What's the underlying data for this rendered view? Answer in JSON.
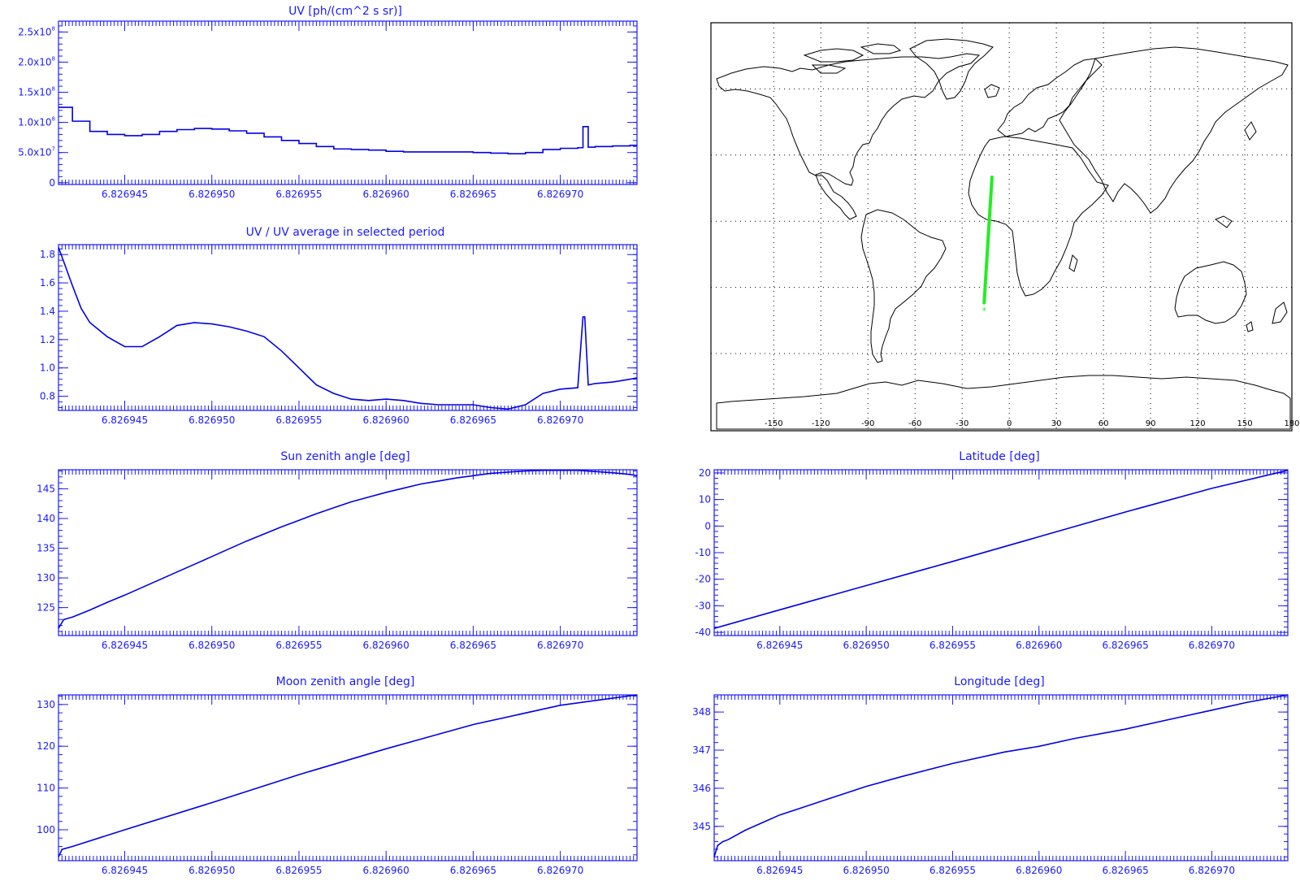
{
  "chart_data": [
    {
      "type": "line",
      "title": "UV [ph/(cm^2 s sr)]",
      "xlabel": "",
      "ylabel": "",
      "x_ticks": [
        "6.826945",
        "6.826950",
        "6.826955",
        "6.826960",
        "6.826965",
        "6.826970"
      ],
      "y_ticks": [
        {
          "value": 0,
          "label": "0"
        },
        {
          "value": 50000000,
          "label": "5.0x10",
          "exp": "7"
        },
        {
          "value": 100000000,
          "label": "1.0x10",
          "exp": "8"
        },
        {
          "value": 150000000,
          "label": "1.5x10",
          "exp": "8"
        },
        {
          "value": 200000000,
          "label": "2.0x10",
          "exp": "8"
        },
        {
          "value": 250000000,
          "label": "2.5x10",
          "exp": "8"
        }
      ],
      "xlim": [
        6.8269412,
        6.8269744
      ],
      "ylim": [
        -3000000,
        268000000
      ],
      "line_style": "histogram",
      "series": [
        {
          "x": [
            6.8269412,
            6.826942,
            6.826943,
            6.826944,
            6.826945,
            6.826946,
            6.826947,
            6.826948,
            6.826949,
            6.82695,
            6.826951,
            6.826952,
            6.826953,
            6.826954,
            6.826955,
            6.826956,
            6.826957,
            6.826958,
            6.826959,
            6.82696,
            6.826961,
            6.826962,
            6.826963,
            6.826964,
            6.826965,
            6.826966,
            6.826967,
            6.826968,
            6.826969,
            6.82697,
            6.826971,
            6.8269713,
            6.8269714,
            6.8269716,
            6.826972,
            6.826973,
            6.826974,
            6.8269744
          ],
          "y": [
            125000000,
            102000000,
            85000000,
            80000000,
            78000000,
            80000000,
            85000000,
            88000000,
            90000000,
            89000000,
            86000000,
            82000000,
            76000000,
            70000000,
            65000000,
            60000000,
            56000000,
            55000000,
            54000000,
            52000000,
            51000000,
            51000000,
            51000000,
            51000000,
            50000000,
            49000000,
            48000000,
            50000000,
            55000000,
            57000000,
            58000000,
            93000000,
            93000000,
            59000000,
            60000000,
            61000000,
            62000000,
            62000000
          ]
        }
      ]
    },
    {
      "type": "line",
      "title": "UV / UV average in selected period",
      "xlabel": "",
      "ylabel": "",
      "x_ticks": [
        "6.826945",
        "6.826950",
        "6.826955",
        "6.826960",
        "6.826965",
        "6.826970"
      ],
      "y_ticks": [
        {
          "value": 0.8,
          "label": "0.8"
        },
        {
          "value": 1.0,
          "label": "1.0"
        },
        {
          "value": 1.2,
          "label": "1.2"
        },
        {
          "value": 1.4,
          "label": "1.4"
        },
        {
          "value": 1.6,
          "label": "1.6"
        },
        {
          "value": 1.8,
          "label": "1.8"
        }
      ],
      "xlim": [
        6.8269412,
        6.8269744
      ],
      "ylim": [
        0.7,
        1.87
      ],
      "series": [
        {
          "x": [
            6.8269412,
            6.8269415,
            6.826942,
            6.8269425,
            6.826943,
            6.826944,
            6.826945,
            6.826946,
            6.826947,
            6.826948,
            6.826949,
            6.82695,
            6.826951,
            6.826952,
            6.826953,
            6.826954,
            6.826955,
            6.826956,
            6.826957,
            6.826958,
            6.826959,
            6.82696,
            6.826961,
            6.826962,
            6.826963,
            6.826964,
            6.826965,
            6.826966,
            6.826967,
            6.826968,
            6.826969,
            6.82697,
            6.826971,
            6.8269713,
            6.8269714,
            6.8269716,
            6.826972,
            6.826973,
            6.826974,
            6.8269744
          ],
          "y": [
            1.85,
            1.75,
            1.58,
            1.42,
            1.32,
            1.22,
            1.15,
            1.15,
            1.22,
            1.3,
            1.32,
            1.31,
            1.29,
            1.26,
            1.22,
            1.12,
            1.0,
            0.88,
            0.82,
            0.78,
            0.77,
            0.78,
            0.77,
            0.75,
            0.74,
            0.74,
            0.74,
            0.72,
            0.71,
            0.74,
            0.82,
            0.85,
            0.86,
            1.36,
            1.36,
            0.88,
            0.89,
            0.9,
            0.92,
            0.93
          ]
        }
      ]
    },
    {
      "type": "line",
      "title": "Sun zenith angle [deg]",
      "xlabel": "",
      "ylabel": "",
      "x_ticks": [
        "6.826945",
        "6.826950",
        "6.826955",
        "6.826960",
        "6.826965",
        "6.826970"
      ],
      "y_ticks": [
        {
          "value": 125,
          "label": "125"
        },
        {
          "value": 130,
          "label": "130"
        },
        {
          "value": 135,
          "label": "135"
        },
        {
          "value": 140,
          "label": "140"
        },
        {
          "value": 145,
          "label": "145"
        }
      ],
      "xlim": [
        6.8269412,
        6.8269744
      ],
      "ylim": [
        120.3,
        148.2
      ],
      "series": [
        {
          "x": [
            6.8269412,
            6.8269415,
            6.826942,
            6.826943,
            6.826944,
            6.826945,
            6.826946,
            6.826947,
            6.826948,
            6.826949,
            6.82695,
            6.826951,
            6.826952,
            6.826953,
            6.826954,
            6.826955,
            6.826956,
            6.826957,
            6.826958,
            6.826959,
            6.82696,
            6.826961,
            6.826962,
            6.826963,
            6.826964,
            6.826965,
            6.826966,
            6.826967,
            6.826968,
            6.826969,
            6.82697,
            6.826971,
            6.826972,
            6.826973,
            6.826974,
            6.8269744
          ],
          "y": [
            121.5,
            123.0,
            123.4,
            124.6,
            125.9,
            127.1,
            128.4,
            129.7,
            131.0,
            132.3,
            133.6,
            134.9,
            136.2,
            137.4,
            138.6,
            139.7,
            140.8,
            141.8,
            142.8,
            143.6,
            144.4,
            145.1,
            145.8,
            146.3,
            146.8,
            147.2,
            147.6,
            147.8,
            148.0,
            148.1,
            148.1,
            148.1,
            147.9,
            147.7,
            147.4,
            147.2
          ]
        }
      ]
    },
    {
      "type": "line",
      "title": "Latitude [deg]",
      "xlabel": "",
      "ylabel": "",
      "x_ticks": [
        "6.826945",
        "6.826950",
        "6.826955",
        "6.826960",
        "6.826965",
        "6.826970"
      ],
      "y_ticks": [
        {
          "value": -40,
          "label": "-40"
        },
        {
          "value": -30,
          "label": "-30"
        },
        {
          "value": -20,
          "label": "-20"
        },
        {
          "value": -10,
          "label": "-10"
        },
        {
          "value": 0,
          "label": "0"
        },
        {
          "value": 10,
          "label": "10"
        },
        {
          "value": 20,
          "label": "20"
        }
      ],
      "xlim": [
        6.8269412,
        6.8269744
      ],
      "ylim": [
        -41.2,
        21.2
      ],
      "series": [
        {
          "x": [
            6.8269412,
            6.826945,
            6.82695,
            6.826955,
            6.82696,
            6.826965,
            6.82697,
            6.8269744
          ],
          "y": [
            -38.5,
            -31.5,
            -22.4,
            -13.3,
            -4.0,
            5.3,
            14.2,
            21.0
          ]
        }
      ]
    },
    {
      "type": "line",
      "title": "Moon zenith angle [deg]",
      "xlabel": "",
      "ylabel": "",
      "x_ticks": [
        "6.826945",
        "6.826950",
        "6.826955",
        "6.826960",
        "6.826965",
        "6.826970"
      ],
      "y_ticks": [
        {
          "value": 100,
          "label": "100"
        },
        {
          "value": 110,
          "label": "110"
        },
        {
          "value": 120,
          "label": "120"
        },
        {
          "value": 130,
          "label": "130"
        }
      ],
      "xlim": [
        6.8269412,
        6.8269744
      ],
      "ylim": [
        92.6,
        132.3
      ],
      "series": [
        {
          "x": [
            6.8269412,
            6.8269414,
            6.826942,
            6.826945,
            6.82695,
            6.826955,
            6.82696,
            6.826965,
            6.82697,
            6.8269744
          ],
          "y": [
            93.5,
            95.3,
            96.0,
            100.0,
            106.5,
            113.2,
            119.4,
            125.2,
            129.8,
            132.3
          ]
        }
      ]
    },
    {
      "type": "line",
      "title": "Longitude [deg]",
      "xlabel": "",
      "ylabel": "",
      "x_ticks": [
        "6.826945",
        "6.826950",
        "6.826955",
        "6.826960",
        "6.826965",
        "6.826970"
      ],
      "y_ticks": [
        {
          "value": 345,
          "label": "345"
        },
        {
          "value": 346,
          "label": "346"
        },
        {
          "value": 347,
          "label": "347"
        },
        {
          "value": 348,
          "label": "348"
        }
      ],
      "xlim": [
        6.8269412,
        6.8269744
      ],
      "ylim": [
        344.1,
        348.45
      ],
      "series": [
        {
          "x": [
            6.8269412,
            6.8269414,
            6.8269417,
            6.826942,
            6.826943,
            6.826944,
            6.826945,
            6.826946,
            6.826948,
            6.82695,
            6.826952,
            6.826955,
            6.826958,
            6.82696,
            6.826962,
            6.826965,
            6.826968,
            6.82697,
            6.826972,
            6.8269744
          ],
          "y": [
            344.2,
            344.5,
            344.6,
            344.65,
            344.9,
            345.1,
            345.3,
            345.45,
            345.75,
            346.05,
            346.3,
            346.65,
            346.95,
            347.1,
            347.3,
            347.55,
            347.85,
            348.05,
            348.25,
            348.45
          ]
        }
      ]
    },
    {
      "type": "map",
      "projection": "cylindrical",
      "lon_ticks": [
        "-150",
        "-120",
        "-90",
        "-60",
        "-30",
        "0",
        "30",
        "60",
        "90",
        "120",
        "150",
        "180"
      ],
      "grid": "dotted",
      "colors": {
        "coast": "#000000",
        "track": "#22ee22"
      },
      "track": {
        "lon": [
          -11,
          -16
        ],
        "lat": [
          20,
          -37
        ]
      },
      "marker": {
        "lon": -16,
        "lat": -42
      }
    }
  ]
}
